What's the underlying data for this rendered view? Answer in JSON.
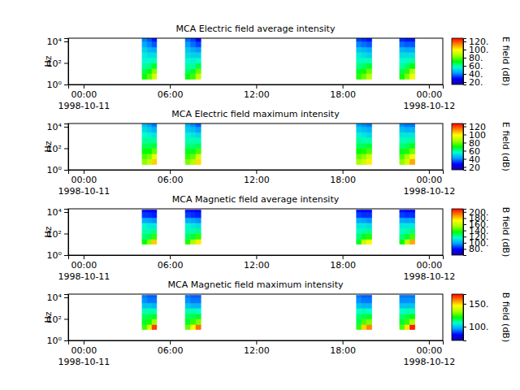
{
  "chart_data": [
    {
      "type": "heatmap",
      "title": "MCA  Electric field average intensity",
      "ylabel": "Hz",
      "log": "y",
      "xlim": [
        "1998-10-10T22:56",
        "1998-10-12T00:58"
      ],
      "xticks": [
        {
          "value": "1998-10-11T00:00",
          "label": "00:00\n1998-10-11"
        },
        {
          "value": "1998-10-11T06:00",
          "label": "06:00"
        },
        {
          "value": "1998-10-11T12:00",
          "label": "12:00"
        },
        {
          "value": "1998-10-11T18:00",
          "label": "18:00"
        },
        {
          "value": "1998-10-12T00:00",
          "label": "00:00\n1998-10-12"
        }
      ],
      "ylim": [
        1,
        20000
      ],
      "yticks": [
        {
          "value": 1,
          "label": "10⁰"
        },
        {
          "value": 100,
          "label": "10²"
        },
        {
          "value": 10000,
          "label": "10⁴"
        }
      ],
      "y_edges": [
        3,
        10,
        30,
        100,
        300,
        1000,
        3000,
        10000,
        20000
      ],
      "segments": [
        {
          "x_edges": [
            "1998-10-11T04:04",
            "1998-10-11T04:25",
            "1998-10-11T04:45",
            "1998-10-11T05:05"
          ],
          "values": [
            [
              72,
              66,
              60,
              56,
              54,
              50,
              44,
              40
            ],
            [
              78,
              70,
              62,
              56,
              52,
              46,
              40,
              36
            ],
            [
              92,
              82,
              68,
              58,
              52,
              44,
              36,
              30
            ]
          ]
        },
        {
          "x_edges": [
            "1998-10-11T07:04",
            "1998-10-11T07:26",
            "1998-10-11T07:48",
            "1998-10-11T08:09"
          ],
          "values": [
            [
              70,
              64,
              60,
              56,
              52,
              48,
              42,
              38
            ],
            [
              76,
              68,
              60,
              55,
              50,
              44,
              38,
              34
            ],
            [
              90,
              80,
              66,
              57,
              50,
              42,
              34,
              28
            ]
          ]
        },
        {
          "x_edges": [
            "1998-10-11T18:58",
            "1998-10-11T19:19",
            "1998-10-11T19:40",
            "1998-10-11T20:02"
          ],
          "values": [
            [
              74,
              68,
              62,
              58,
              54,
              48,
              40,
              34
            ],
            [
              80,
              72,
              64,
              58,
              52,
              46,
              38,
              32
            ],
            [
              88,
              80,
              68,
              58,
              50,
              44,
              36,
              30
            ]
          ]
        },
        {
          "x_edges": [
            "1998-10-11T21:58",
            "1998-10-11T22:19",
            "1998-10-11T22:40",
            "1998-10-11T23:02"
          ],
          "values": [
            [
              72,
              66,
              60,
              56,
              52,
              46,
              38,
              32
            ],
            [
              82,
              74,
              64,
              58,
              52,
              44,
              36,
              30
            ],
            [
              96,
              86,
              70,
              60,
              52,
              44,
              36,
              30
            ]
          ]
        }
      ],
      "colorbar": {
        "label": "E field (dB)",
        "range": [
          14,
          128
        ],
        "ticks": [
          {
            "value": 20,
            "label": "20."
          },
          {
            "value": 40,
            "label": "40."
          },
          {
            "value": 60,
            "label": "60."
          },
          {
            "value": 80,
            "label": "80."
          },
          {
            "value": 100,
            "label": "100."
          },
          {
            "value": 120,
            "label": "120."
          }
        ]
      }
    },
    {
      "type": "heatmap",
      "title": "MCA  Electric field maximum intensity",
      "ylabel": "Hz",
      "log": "y",
      "xlim": [
        "1998-10-10T22:56",
        "1998-10-12T00:58"
      ],
      "xticks": [
        {
          "value": "1998-10-11T00:00",
          "label": "00:00\n1998-10-11"
        },
        {
          "value": "1998-10-11T06:00",
          "label": "06:00"
        },
        {
          "value": "1998-10-11T12:00",
          "label": "12:00"
        },
        {
          "value": "1998-10-11T18:00",
          "label": "18:00"
        },
        {
          "value": "1998-10-12T00:00",
          "label": "00:00\n1998-10-12"
        }
      ],
      "ylim": [
        1,
        20000
      ],
      "yticks": [
        {
          "value": 1,
          "label": "10⁰"
        },
        {
          "value": 100,
          "label": "10²"
        },
        {
          "value": 10000,
          "label": "10⁴"
        }
      ],
      "y_edges": [
        3,
        10,
        30,
        100,
        300,
        1000,
        3000,
        10000,
        20000
      ],
      "segments": [
        {
          "x_edges": [
            "1998-10-11T04:04",
            "1998-10-11T04:25",
            "1998-10-11T04:45",
            "1998-10-11T05:05"
          ],
          "values": [
            [
              82,
              76,
              70,
              64,
              60,
              56,
              50,
              46
            ],
            [
              88,
              80,
              70,
              64,
              60,
              54,
              48,
              42
            ],
            [
              104,
              94,
              78,
              66,
              60,
              52,
              44,
              38
            ]
          ]
        },
        {
          "x_edges": [
            "1998-10-11T07:04",
            "1998-10-11T07:26",
            "1998-10-11T07:48",
            "1998-10-11T08:09"
          ],
          "values": [
            [
              80,
              74,
              68,
              62,
              58,
              54,
              48,
              44
            ],
            [
              86,
              78,
              68,
              62,
              58,
              52,
              46,
              40
            ],
            [
              102,
              92,
              76,
              64,
              58,
              50,
              42,
              36
            ]
          ]
        },
        {
          "x_edges": [
            "1998-10-11T18:58",
            "1998-10-11T19:19",
            "1998-10-11T19:40",
            "1998-10-11T20:02"
          ],
          "values": [
            [
              84,
              78,
              70,
              64,
              60,
              54,
              48,
              42
            ],
            [
              90,
              82,
              72,
              64,
              58,
              52,
              46,
              40
            ],
            [
              100,
              90,
              76,
              66,
              58,
              50,
              44,
              38
            ]
          ]
        },
        {
          "x_edges": [
            "1998-10-11T21:58",
            "1998-10-11T22:19",
            "1998-10-11T22:40",
            "1998-10-11T23:02"
          ],
          "values": [
            [
              82,
              76,
              68,
              62,
              58,
              52,
              46,
              40
            ],
            [
              92,
              84,
              72,
              64,
              58,
              52,
              44,
              38
            ],
            [
              108,
              96,
              80,
              68,
              60,
              52,
              44,
              38
            ]
          ]
        }
      ],
      "colorbar": {
        "label": "E field (dB)",
        "range": [
          13,
          127
        ],
        "ticks": [
          20,
          40,
          60,
          80,
          100,
          120
        ]
      }
    },
    {
      "type": "heatmap",
      "title": "MCA  Magnetic field average intensity",
      "ylabel": "Hz",
      "log": "y",
      "xlim": [
        "1998-10-10T22:56",
        "1998-10-12T00:58"
      ],
      "xticks": [
        {
          "value": "1998-10-11T00:00",
          "label": "00:00\n1998-10-11"
        },
        {
          "value": "1998-10-11T06:00",
          "label": "06:00"
        },
        {
          "value": "1998-10-11T12:00",
          "label": "12:00"
        },
        {
          "value": "1998-10-11T18:00",
          "label": "18:00"
        },
        {
          "value": "1998-10-12T00:00",
          "label": "00:00\n1998-10-12"
        }
      ],
      "ylim": [
        1,
        20000
      ],
      "yticks": [
        {
          "value": 1,
          "label": "10⁰"
        },
        {
          "value": 100,
          "label": "10²"
        },
        {
          "value": 10000,
          "label": "10⁴"
        }
      ],
      "y_edges": [
        10,
        30,
        100,
        300,
        1000,
        3000,
        10000,
        16000
      ],
      "segments": [
        {
          "x_edges": [
            "1998-10-11T04:04",
            "1998-10-11T04:25",
            "1998-10-11T04:45",
            "1998-10-11T05:05"
          ],
          "values": [
            [
              135,
              125,
              120,
              115,
              100,
              85,
              80
            ],
            [
              150,
              128,
              120,
              112,
              98,
              84,
              78
            ],
            [
              180,
              140,
              122,
              112,
              96,
              82,
              76
            ]
          ]
        },
        {
          "x_edges": [
            "1998-10-11T07:04",
            "1998-10-11T07:26",
            "1998-10-11T07:48",
            "1998-10-11T08:09"
          ],
          "values": [
            [
              138,
              126,
              120,
              114,
              100,
              86,
              80
            ],
            [
              155,
              130,
              120,
              112,
              98,
              84,
              78
            ],
            [
              175,
              140,
              122,
              110,
              96,
              82,
              76
            ]
          ]
        },
        {
          "x_edges": [
            "1998-10-11T18:58",
            "1998-10-11T19:19",
            "1998-10-11T19:40",
            "1998-10-11T20:02"
          ],
          "values": [
            [
              132,
              124,
              118,
              112,
              100,
              86,
              80
            ],
            [
              160,
              132,
              120,
              112,
              98,
              84,
              78
            ],
            [
              170,
              138,
              122,
              110,
              96,
              84,
              78
            ]
          ]
        },
        {
          "x_edges": [
            "1998-10-11T21:58",
            "1998-10-11T22:19",
            "1998-10-11T22:40",
            "1998-10-11T23:02"
          ],
          "values": [
            [
              134,
              124,
              118,
              112,
              100,
              86,
              80
            ],
            [
              158,
              130,
              120,
              112,
              98,
              84,
              78
            ],
            [
              185,
              142,
              124,
              112,
              98,
              84,
              78
            ]
          ]
        }
      ],
      "colorbar": {
        "label": "B field (dB)",
        "range": [
          60,
          210
        ],
        "ticks": [
          {
            "value": 80,
            "label": "80."
          },
          {
            "value": 100,
            "label": "100."
          },
          {
            "value": 120,
            "label": "120."
          },
          {
            "value": 140,
            "label": "140."
          },
          {
            "value": 160,
            "label": "160."
          },
          {
            "value": 180,
            "label": "180."
          },
          {
            "value": 200,
            "label": "200."
          }
        ]
      }
    },
    {
      "type": "heatmap",
      "title": "MCA  Magnetic field maximum intensity",
      "ylabel": "Hz",
      "log": "y",
      "xlim": [
        "1998-10-10T22:56",
        "1998-10-12T00:58"
      ],
      "xticks": [
        {
          "value": "1998-10-11T00:00",
          "label": "00:00\n1998-10-11"
        },
        {
          "value": "1998-10-11T06:00",
          "label": "06:00"
        },
        {
          "value": "1998-10-11T12:00",
          "label": "12:00"
        },
        {
          "value": "1998-10-11T18:00",
          "label": "18:00"
        },
        {
          "value": "1998-10-12T00:00",
          "label": "00:00\n1998-10-12"
        }
      ],
      "ylim": [
        1,
        20000
      ],
      "yticks": [
        {
          "value": 1,
          "label": "10⁰"
        },
        {
          "value": 100,
          "label": "10²"
        },
        {
          "value": 10000,
          "label": "10⁴"
        }
      ],
      "y_edges": [
        10,
        30,
        100,
        300,
        1000,
        3000,
        10000,
        16000
      ],
      "segments": [
        {
          "x_edges": [
            "1998-10-11T04:04",
            "1998-10-11T04:25",
            "1998-10-11T04:45",
            "1998-10-11T05:05"
          ],
          "values": [
            [
              125,
              118,
              115,
              110,
              100,
              94,
              92
            ],
            [
              140,
              122,
              116,
              110,
              100,
              92,
              90
            ],
            [
              165,
              132,
              118,
              110,
              98,
              92,
              90
            ]
          ]
        },
        {
          "x_edges": [
            "1998-10-11T07:04",
            "1998-10-11T07:26",
            "1998-10-11T07:48",
            "1998-10-11T08:09"
          ],
          "values": [
            [
              128,
              118,
              115,
              110,
              100,
              94,
              92
            ],
            [
              145,
              124,
              116,
              110,
              98,
              92,
              90
            ],
            [
              160,
              130,
              118,
              108,
              98,
              92,
              90
            ]
          ]
        },
        {
          "x_edges": [
            "1998-10-11T18:58",
            "1998-10-11T19:19",
            "1998-10-11T19:40",
            "1998-10-11T20:02"
          ],
          "values": [
            [
              124,
              116,
              114,
              108,
              100,
              94,
              92
            ],
            [
              150,
              126,
              116,
              110,
              98,
              92,
              90
            ],
            [
              158,
              130,
              118,
              108,
              98,
              92,
              90
            ]
          ]
        },
        {
          "x_edges": [
            "1998-10-11T21:58",
            "1998-10-11T22:19",
            "1998-10-11T22:40",
            "1998-10-11T23:02"
          ],
          "values": [
            [
              126,
              118,
              114,
              108,
              100,
              94,
              92
            ],
            [
              148,
              124,
              116,
              110,
              100,
              94,
              92
            ],
            [
              168,
              134,
              120,
              110,
              100,
              94,
              92
            ]
          ]
        }
      ],
      "colorbar": {
        "label": "B field (dB)",
        "range": [
          70,
          171
        ],
        "ticks": [
          {
            "value": 100,
            "label": "100."
          },
          {
            "value": 150,
            "label": "150."
          }
        ]
      }
    }
  ]
}
